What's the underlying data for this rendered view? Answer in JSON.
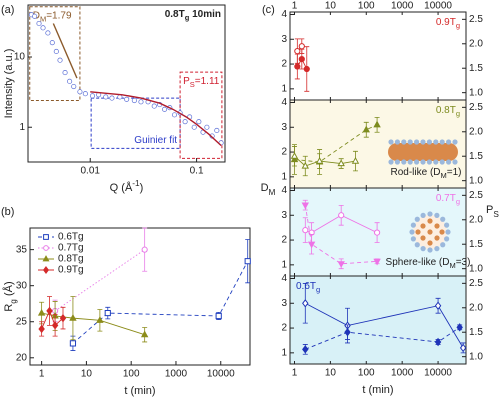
{
  "chart_data": [
    {
      "type": "scatter",
      "panel_label": "(a)",
      "title": [
        {
          "text": "0.8T"
        },
        {
          "text": "g",
          "sub": true
        },
        {
          "text": " 10min"
        }
      ],
      "x_label": [
        {
          "text": "Q (Å"
        },
        {
          "text": "-1",
          "sup": true
        },
        {
          "text": ")"
        }
      ],
      "y_label": "Intensity (a.u.)",
      "xscale": "log",
      "yscale": "log",
      "xlim": [
        0.0026,
        0.185
      ],
      "ylim": [
        0.32,
        55
      ],
      "xticks": [
        0.01,
        0.1
      ],
      "yticks": [
        1,
        10
      ],
      "series": [
        {
          "style": "markers",
          "color": "#5b6fd6",
          "x": [
            0.0028,
            0.003,
            0.0033,
            0.0036,
            0.004,
            0.0044,
            0.0048,
            0.0052,
            0.0058,
            0.0064,
            0.007,
            0.008,
            0.009,
            0.0105,
            0.012,
            0.014,
            0.016,
            0.019,
            0.022,
            0.026,
            0.03,
            0.035,
            0.04,
            0.045,
            0.05,
            0.056,
            0.062,
            0.07,
            0.078,
            0.086,
            0.095,
            0.105,
            0.115,
            0.125,
            0.14,
            0.155,
            0.17
          ],
          "values": [
            40,
            38,
            30,
            26,
            22,
            16,
            12,
            9,
            6,
            4.5,
            3.8,
            3.2,
            3,
            2.8,
            2.9,
            2.7,
            2.6,
            2.7,
            2.5,
            2.4,
            2.3,
            2.3,
            2,
            2.1,
            1.8,
            1.9,
            1.5,
            1.6,
            1.2,
            1.4,
            1,
            1.2,
            0.85,
            1,
            0.75,
            0.9,
            0.6
          ]
        },
        {
          "style": "line",
          "color": "#8b5a2b",
          "x": [
            0.0045,
            0.0075
          ],
          "values": [
            30,
            5
          ]
        },
        {
          "style": "line",
          "color": "#b01c2c",
          "x": [
            0.01,
            0.02,
            0.03,
            0.045,
            0.06,
            0.08,
            0.1,
            0.13,
            0.17
          ],
          "values": [
            3.2,
            2.9,
            2.6,
            2.2,
            1.8,
            1.4,
            1.1,
            0.8,
            0.55
          ]
        }
      ],
      "boxes": [
        {
          "label": [
            {
              "text": "D"
            },
            {
              "text": "M",
              "sub": true
            },
            {
              "text": "=1.79"
            }
          ],
          "label_corner": "top-left",
          "color": "#8b5a2b",
          "xlim": [
            0.0027,
            0.008
          ],
          "ylim": [
            2.4,
            52
          ]
        },
        {
          "label": "Guinier fit",
          "label_corner": "bottom-right",
          "color": "#2c3cc8",
          "xlim": [
            0.0102,
            0.07
          ],
          "ylim": [
            0.5,
            2.6
          ]
        },
        {
          "label": [
            {
              "text": "P"
            },
            {
              "text": "S",
              "sub": true
            },
            {
              "text": "=1.11"
            }
          ],
          "label_corner": "top-left",
          "color": "#d02030",
          "xlim": [
            0.07,
            0.173
          ],
          "ylim": [
            0.36,
            6.1
          ]
        }
      ]
    },
    {
      "type": "errorbar",
      "panel_label": "(b)",
      "x_label": "t (min)",
      "y_label": [
        {
          "text": "R"
        },
        {
          "text": "g",
          "sub": true
        },
        {
          "text": " (Å)"
        }
      ],
      "xscale": "log",
      "xlim": [
        0.55,
        45000
      ],
      "ylim": [
        19,
        38
      ],
      "xticks": [
        1,
        10,
        100,
        1000,
        10000
      ],
      "yticks": [
        20,
        25,
        30,
        35
      ],
      "legend": "top-left",
      "series": [
        {
          "name": "0.6Tg",
          "color": "#1f3fbf",
          "marker": "square",
          "filled": false,
          "line": "dashed",
          "x": [
            5,
            30,
            9000,
            40000
          ],
          "values": [
            22,
            26.2,
            25.8,
            33.4
          ],
          "errors": [
            1,
            0.8,
            0.5,
            3
          ]
        },
        {
          "name": "0.7Tg",
          "color": "#e87de8",
          "marker": "circle",
          "filled": false,
          "line": "dotted",
          "x": [
            2,
            200
          ],
          "values": [
            26.5,
            35
          ],
          "errors": [
            1.5,
            3
          ]
        },
        {
          "name": "0.8Tg",
          "color": "#8c8c1a",
          "marker": "triangle-up",
          "filled": true,
          "line": "solid",
          "x": [
            1,
            2,
            5,
            20,
            200
          ],
          "values": [
            26.2,
            25.8,
            25.5,
            25.2,
            23.2
          ],
          "errors": [
            1.5,
            2,
            3,
            1.5,
            1
          ]
        },
        {
          "name": "0.9Tg",
          "color": "#d42a2a",
          "marker": "diamond",
          "filled": true,
          "line": "solid",
          "x": [
            1,
            1.5,
            2,
            3
          ],
          "values": [
            24,
            26.5,
            24.5,
            25.5
          ],
          "errors": [
            1,
            2,
            1.5,
            1.5
          ]
        }
      ]
    },
    {
      "type": "multi-panel",
      "panel_label": "(c)",
      "x_label": "t (min)",
      "y_label": [
        {
          "text": "D"
        },
        {
          "text": "M",
          "sub": true
        }
      ],
      "y2_label": [
        {
          "text": "P"
        },
        {
          "text": "S",
          "sub": true
        }
      ],
      "xscale": "log",
      "xlim": [
        0.75,
        60000
      ],
      "xticks": [
        1,
        10,
        100,
        1000,
        10000
      ],
      "ylim": [
        0.55,
        4.1
      ],
      "yticks": [
        1,
        2,
        3,
        4
      ],
      "y2lim": [
        0.85,
        2.65
      ],
      "y2ticks": [
        {
          "value": 1,
          "label": "1.0"
        },
        1.5,
        {
          "value": 2,
          "label": "2.0"
        },
        2.5
      ],
      "annotations": [
        [
          {
            "text": "Rod-like (D"
          },
          {
            "text": "M",
            "sub": true
          },
          {
            "text": "=1)"
          }
        ],
        [
          {
            "text": "Sphere-like (D"
          },
          {
            "text": "M",
            "sub": true
          },
          {
            "text": "=3)"
          }
        ]
      ],
      "panels": [
        {
          "label": [
            {
              "text": "0.9T"
            },
            {
              "text": "g",
              "sub": true
            }
          ],
          "label_corner": "top-right",
          "color": "#d42a2a",
          "background": "#ffffff",
          "series": [
            {
              "axis": "y",
              "marker": "circle",
              "filled": true,
              "line": "solid",
              "x": [
                1.2,
                1.6,
                2.2
              ],
              "values": [
                1.9,
                2.2,
                1.8
              ],
              "errors": [
                0.5,
                0.4,
                0.9
              ]
            },
            {
              "axis": "y2",
              "marker": "circle",
              "filled": false,
              "line": "solid",
              "x": [
                1.2,
                1.6
              ],
              "values": [
                1.85,
                1.95
              ],
              "errors": [
                0.25,
                0.15
              ]
            }
          ]
        },
        {
          "label": [
            {
              "text": "0.8T"
            },
            {
              "text": "g",
              "sub": true
            }
          ],
          "label_corner": "top-right",
          "color": "#7d8b1e",
          "background": "#fcf8e6",
          "series": [
            {
              "axis": "y",
              "marker": "triangle-up",
              "filled": true,
              "line": "dashed",
              "x": [
                1,
                5,
                100,
                200
              ],
              "values": [
                1.7,
                1.6,
                2.9,
                3.1
              ],
              "errors": [
                0.6,
                0.5,
                0.3,
                0.3
              ]
            },
            {
              "axis": "y2",
              "marker": "triangle-up",
              "filled": false,
              "line": "solid",
              "x": [
                1,
                2,
                5,
                20,
                50
              ],
              "values": [
                1.5,
                1.3,
                1.4,
                1.35,
                1.4
              ],
              "errors": [
                0.2,
                0.2,
                0.15,
                0.1,
                0.2
              ]
            }
          ]
        },
        {
          "label": [
            {
              "text": "0.7T"
            },
            {
              "text": "g",
              "sub": true
            }
          ],
          "label_corner": "top-right",
          "color": "#ee72e6",
          "background": "#e4f7fb",
          "series": [
            {
              "axis": "y",
              "marker": "circle",
              "filled": false,
              "line": "solid",
              "x": [
                2,
                3,
                20,
                200
              ],
              "values": [
                2.4,
                2.3,
                3,
                2.3
              ],
              "errors": [
                0.5,
                0.4,
                0.4,
                0.4
              ]
            },
            {
              "axis": "y2",
              "marker": "triangle-down",
              "filled": true,
              "line": "dashed",
              "x": [
                2,
                3,
                20,
                200
              ],
              "values": [
                2.3,
                1.5,
                1.1,
                1.15
              ],
              "errors": [
                0.1,
                0.2,
                0.1,
                0.05
              ]
            }
          ]
        },
        {
          "label": [
            {
              "text": "0.6T"
            },
            {
              "text": "g",
              "sub": true
            }
          ],
          "label_corner": "top-left",
          "color": "#1f34b8",
          "background": "#d8f1f7",
          "series": [
            {
              "axis": "y",
              "marker": "diamond",
              "filled": false,
              "line": "solid",
              "x": [
                2,
                30,
                10000,
                50000
              ],
              "values": [
                3,
                2.1,
                2.9,
                1.2
              ],
              "errors": [
                0.8,
                0.7,
                0.3,
                0.2
              ]
            },
            {
              "axis": "y2",
              "marker": "diamond",
              "filled": true,
              "line": "dashed",
              "x": [
                2,
                30,
                10000,
                40000
              ],
              "values": [
                1.15,
                1.5,
                1.3,
                1.6
              ],
              "errors": [
                0.1,
                0.15,
                0.05,
                0.05
              ]
            }
          ]
        }
      ]
    }
  ]
}
